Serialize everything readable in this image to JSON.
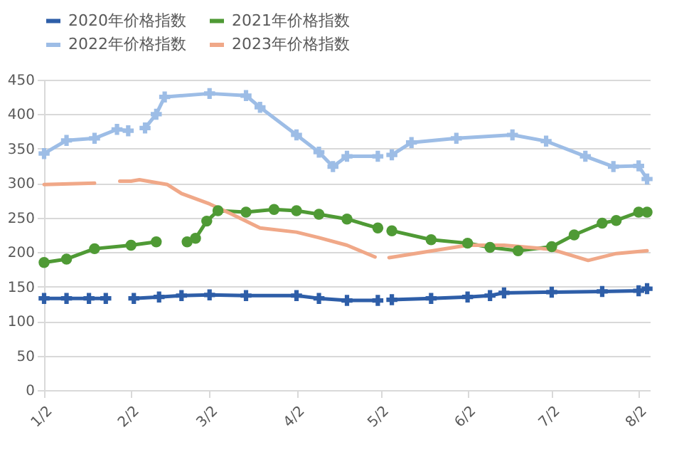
{
  "chart_data": {
    "type": "line",
    "xlim": [
      "--01-02",
      "--08-06"
    ],
    "xticks": [
      {
        "value": "--01-02",
        "label": "1/2"
      },
      {
        "value": "--02-02",
        "label": "2/2"
      },
      {
        "value": "--03-02",
        "label": "3/2"
      },
      {
        "value": "--04-02",
        "label": "4/2"
      },
      {
        "value": "--05-02",
        "label": "5/2"
      },
      {
        "value": "--06-02",
        "label": "6/2"
      },
      {
        "value": "--07-02",
        "label": "7/2"
      },
      {
        "value": "--08-02",
        "label": "8/2"
      }
    ],
    "ylim": [
      0,
      450
    ],
    "yticks": [
      0,
      50,
      100,
      150,
      200,
      250,
      300,
      350,
      400,
      450
    ],
    "grid": "y",
    "legend": "top",
    "series": [
      {
        "name": "2020年价格指数",
        "color": "#2e5ea8",
        "marker": "cross",
        "x": [
          "--01-02",
          "--01-10",
          "--01-18",
          "--01-24",
          "--01-28",
          "--02-03",
          "--02-12",
          "--02-20",
          "--03-02",
          "--03-15",
          "--04-02",
          "--04-10",
          "--04-20",
          "--05-01",
          "--05-03",
          "--05-06",
          "--05-20",
          "--06-02",
          "--06-10",
          "--06-15",
          "--07-02",
          "--07-20",
          "--08-02",
          "--08-05"
        ],
        "values": [
          133,
          133,
          133,
          133,
          null,
          133,
          135,
          137,
          138,
          137,
          137,
          133,
          130,
          130,
          null,
          131,
          133,
          135,
          137,
          141,
          142,
          143,
          144,
          147
        ]
      },
      {
        "name": "2021年价格指数",
        "color": "#4f9a35",
        "marker": "circle",
        "x": [
          "--01-02",
          "--01-10",
          "--01-20",
          "--02-02",
          "--02-11",
          "--02-16",
          "--02-22",
          "--02-25",
          "--03-01",
          "--03-05",
          "--03-15",
          "--03-25",
          "--04-02",
          "--04-10",
          "--04-20",
          "--05-01",
          "--05-03",
          "--05-06",
          "--05-20",
          "--06-02",
          "--06-10",
          "--06-20",
          "--07-02",
          "--07-10",
          "--07-20",
          "--07-25",
          "--08-02",
          "--08-05"
        ],
        "values": [
          185,
          190,
          205,
          210,
          215,
          null,
          215,
          220,
          245,
          260,
          258,
          262,
          260,
          255,
          248,
          235,
          null,
          231,
          218,
          213,
          207,
          202,
          208,
          225,
          242,
          246,
          258,
          258
        ]
      },
      {
        "name": "2022年价格指数",
        "color": "#9dbde6",
        "marker": "cross",
        "x": [
          "--01-02",
          "--01-10",
          "--01-20",
          "--01-28",
          "--02-01",
          "--02-04",
          "--02-07",
          "--02-11",
          "--02-14",
          "--03-02",
          "--03-15",
          "--03-20",
          "--04-02",
          "--04-10",
          "--04-15",
          "--04-20",
          "--05-01",
          "--05-03",
          "--05-06",
          "--05-13",
          "--05-29",
          "--06-18",
          "--06-30",
          "--07-14",
          "--07-24",
          "--08-02",
          "--08-05"
        ],
        "values": [
          343,
          362,
          365,
          378,
          376,
          null,
          380,
          400,
          425,
          430,
          427,
          410,
          370,
          345,
          324,
          339,
          339,
          null,
          341,
          359,
          365,
          370,
          361,
          339,
          324,
          325,
          306
        ]
      },
      {
        "name": "2023年价格指数",
        "color": "#f0a888",
        "marker": "none",
        "x": [
          "--01-02",
          "--01-20",
          "--01-24",
          "--01-29",
          "--02-02",
          "--02-05",
          "--02-15",
          "--02-20",
          "--03-02",
          "--03-10",
          "--03-20",
          "--04-02",
          "--04-10",
          "--04-20",
          "--04-30",
          "--05-02",
          "--05-05",
          "--06-02",
          "--06-15",
          "--07-02",
          "--07-15",
          "--07-25",
          "--08-05"
        ],
        "values": [
          298,
          300,
          null,
          303,
          303,
          305,
          298,
          285,
          270,
          255,
          235,
          229,
          221,
          210,
          193,
          null,
          192,
          210,
          210,
          204,
          188,
          198,
          202
        ]
      }
    ]
  }
}
